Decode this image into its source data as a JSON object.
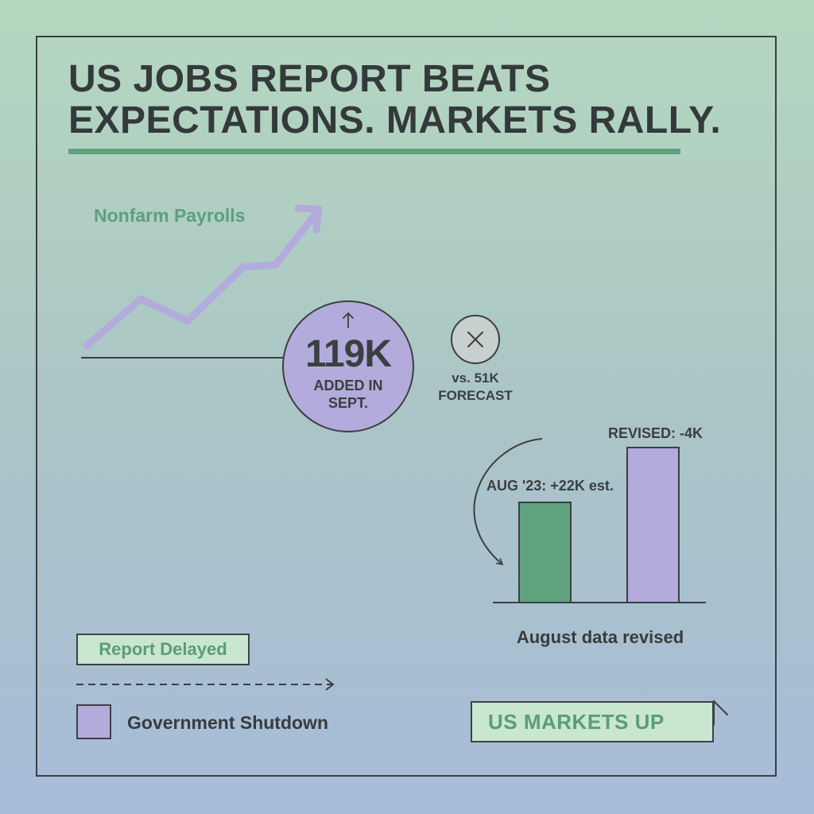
{
  "headline": {
    "line1": "US JOBS REPORT BEATS",
    "line2": "EXPECTATIONS. MARKETS RALLY."
  },
  "payrolls": {
    "label": "Nonfarm Payrolls",
    "value": "119K",
    "value_sub_line1": "ADDED IN",
    "value_sub_line2": "SEPT."
  },
  "forecast": {
    "line1": "vs. 51K",
    "line2": "FORECAST"
  },
  "revision": {
    "revised_label": "REVISED: -4K",
    "original_label": "AUG '23: +22K est.",
    "caption": "August data revised"
  },
  "notes": {
    "delayed": "Report Delayed",
    "shutdown": "Government Shutdown"
  },
  "banner": {
    "markets": "US MARKETS UP"
  },
  "colors": {
    "green": "#5fa27f",
    "purple": "#b3abdc",
    "mint": "#c9e6d0",
    "ink": "#3b3f40"
  }
}
